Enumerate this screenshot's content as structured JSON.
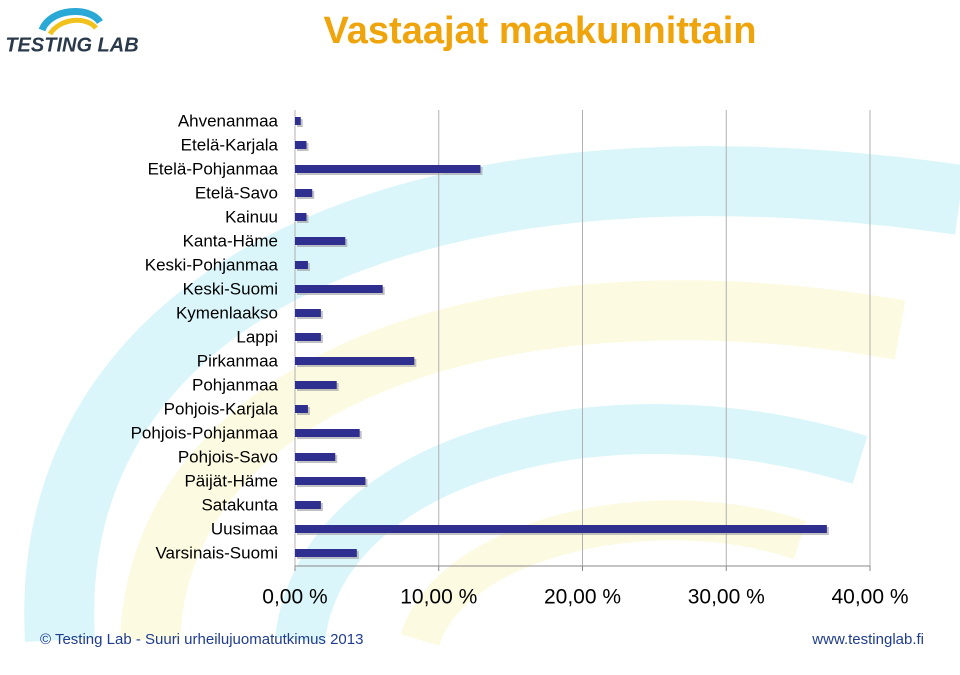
{
  "logo": "TESTING LAB",
  "footer": {
    "left": "© Testing Lab -  Suuri urheilujuomatutkimus 2013",
    "right": "www.testinglab.fi"
  },
  "chart_data": {
    "type": "hbar",
    "title": "Vastaajat maakunnittain",
    "categories": [
      "Ahvenanmaa",
      "Etelä-Karjala",
      "Etelä-Pohjanmaa",
      "Etelä-Savo",
      "Kainuu",
      "Kanta-Häme",
      "Keski-Pohjanmaa",
      "Keski-Suomi",
      "Kymenlaakso",
      "Lappi",
      "Pirkanmaa",
      "Pohjanmaa",
      "Pohjois-Karjala",
      "Pohjois-Pohjanmaa",
      "Pohjois-Savo",
      "Päijät-Häme",
      "Satakunta",
      "Uusimaa",
      "Varsinais-Suomi"
    ],
    "values": [
      0.4,
      0.8,
      12.9,
      1.2,
      0.8,
      3.5,
      0.9,
      6.1,
      1.8,
      1.8,
      8.3,
      2.9,
      0.9,
      4.5,
      2.8,
      4.9,
      1.8,
      37.0,
      4.3
    ],
    "color": "#2e2f8f",
    "xlim": [
      0,
      40
    ],
    "xticks": [
      {
        "value": 0,
        "label": "0,00 %"
      },
      {
        "value": 10,
        "label": "10,00 %"
      },
      {
        "value": 20,
        "label": "20,00 %"
      },
      {
        "value": 30,
        "label": "30,00 %"
      },
      {
        "value": 40,
        "label": "40,00 %"
      }
    ],
    "grid": true
  }
}
